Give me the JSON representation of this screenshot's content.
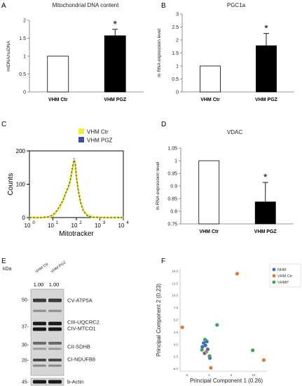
{
  "colors": {
    "bar_ctr_fill": "#ffffff",
    "bar_pgz_fill": "#000000",
    "flow_ctr": "#f2ee2c",
    "flow_pgz": "#3e4f9e",
    "pca_nhm": "#3f6fb5",
    "pca_vhm_ctr": "#e07b3c",
    "pca_vhmp": "#3aa55c"
  },
  "panels": {
    "A": {
      "letter": "A"
    },
    "B": {
      "letter": "B"
    },
    "C": {
      "letter": "C"
    },
    "D": {
      "letter": "D"
    },
    "E": {
      "letter": "E"
    },
    "F": {
      "letter": "F"
    }
  },
  "blot": {
    "kda_label": "kDa",
    "lanes": [
      "VHM Ctr",
      "VHM PGZ"
    ],
    "lane_values": [
      "1.00",
      "1.00"
    ],
    "markers": [
      "50-",
      "37-",
      "30-",
      "20-",
      "45-"
    ],
    "bands": [
      "CV-ATP5A",
      "CIII-UQCRC2",
      "CIV-MTCO1",
      "CII-SDHB",
      "CI-NDUFB8",
      "b-Actin"
    ]
  },
  "chart_data": [
    {
      "id": "A",
      "type": "bar",
      "title": "Mitochondrial DNA content",
      "xlabel": "",
      "ylabel": "mtDNA/nuDNA",
      "categories": [
        "VHM Ctr",
        "VHM PGZ"
      ],
      "values": [
        1.0,
        1.57
      ],
      "errors": [
        0,
        0.18
      ],
      "significance": [
        "",
        "*"
      ],
      "ylim": [
        0,
        2
      ],
      "yticks": [
        "0",
        "0.5",
        "1",
        "1.5",
        "2"
      ]
    },
    {
      "id": "B",
      "type": "bar",
      "title": "PGC1a",
      "xlabel": "",
      "ylabel": "m RNA expression level",
      "categories": [
        "VHM Ctr",
        "VHM PGZ"
      ],
      "values": [
        1.0,
        1.78
      ],
      "errors": [
        0,
        0.47
      ],
      "significance": [
        "",
        "*"
      ],
      "ylim": [
        0,
        3
      ],
      "yticks": [
        "0",
        "0.5",
        "1",
        "1.5",
        "2",
        "2.5",
        "3"
      ]
    },
    {
      "id": "C",
      "type": "line",
      "title": "",
      "xlabel": "Mitotracker",
      "ylabel": "Counts",
      "xscale": "log",
      "xlim": [
        1,
        10000
      ],
      "xticks": [
        "10^0",
        "10^1",
        "10^2",
        "10^3",
        "10^4"
      ],
      "ylim": [
        0,
        200
      ],
      "yticks": [
        "0",
        "100",
        "200"
      ],
      "legend": [
        "VHM Ctr",
        "VHM PGZ"
      ],
      "series": [
        {
          "name": "VHM Ctr",
          "x": [
            1,
            3,
            6,
            10,
            15,
            20,
            28,
            35,
            45,
            55,
            70,
            80,
            90,
            100,
            120,
            150,
            200,
            300,
            500,
            1000,
            10000
          ],
          "y": [
            0,
            0,
            1,
            5,
            18,
            32,
            52,
            72,
            90,
            110,
            150,
            172,
            158,
            125,
            85,
            50,
            22,
            6,
            2,
            0,
            0
          ]
        },
        {
          "name": "VHM PGZ",
          "x": [
            1,
            3,
            6,
            10,
            15,
            20,
            28,
            35,
            45,
            55,
            70,
            80,
            90,
            100,
            120,
            150,
            200,
            300,
            500,
            1000,
            10000
          ],
          "y": [
            0,
            0,
            2,
            8,
            22,
            36,
            55,
            74,
            92,
            112,
            155,
            178,
            160,
            122,
            80,
            45,
            18,
            5,
            1,
            0,
            0
          ]
        }
      ]
    },
    {
      "id": "D",
      "type": "bar",
      "title": "VDAC",
      "xlabel": "",
      "ylabel": "m RNA expression level",
      "categories": [
        "VHM Ctr",
        "VHM PGZ"
      ],
      "values": [
        1.0,
        0.837
      ],
      "errors": [
        0,
        0.077
      ],
      "significance": [
        "",
        "*"
      ],
      "ylim": [
        0.75,
        1.05
      ],
      "yticks": [
        "0.75",
        "0.8",
        "0.85",
        "0.9",
        "0.95",
        "1",
        "1.05"
      ]
    },
    {
      "id": "F",
      "type": "scatter",
      "title": "",
      "xlabel": "Principal Component 1 (0.26)",
      "ylabel": "Principal Component 2 (0.23)",
      "xlim": [
        -6.5,
        13
      ],
      "ylim": [
        -5.5,
        15.5
      ],
      "xticks": [
        "-5",
        "0",
        "5",
        "10"
      ],
      "yticks": [
        "-5.0",
        "-2.5",
        "0.0",
        "2.5",
        "5.0",
        "7.5",
        "10.0",
        "12.5",
        "15.0"
      ],
      "series": [
        {
          "name": "NHM",
          "x": [
            -1.5,
            -1.2,
            -1.0,
            -0.8,
            -0.5,
            -0.3,
            0.2
          ],
          "y": [
            -0.5,
            0.3,
            -1.8,
            -0.2,
            0.6,
            -1.0,
            -2.8
          ]
        },
        {
          "name": "VHM Ctr",
          "x": [
            -6.0,
            -0.6,
            0.4,
            12.3,
            6.3
          ],
          "y": [
            3.5,
            -1.5,
            -4.8,
            -3.2,
            14.5
          ]
        },
        {
          "name": "VHMP",
          "x": [
            -1.6,
            -0.9,
            0.1,
            1.8,
            9.8
          ],
          "y": [
            -1.1,
            1.0,
            -2.4,
            4.0,
            -1.2
          ]
        }
      ]
    }
  ]
}
